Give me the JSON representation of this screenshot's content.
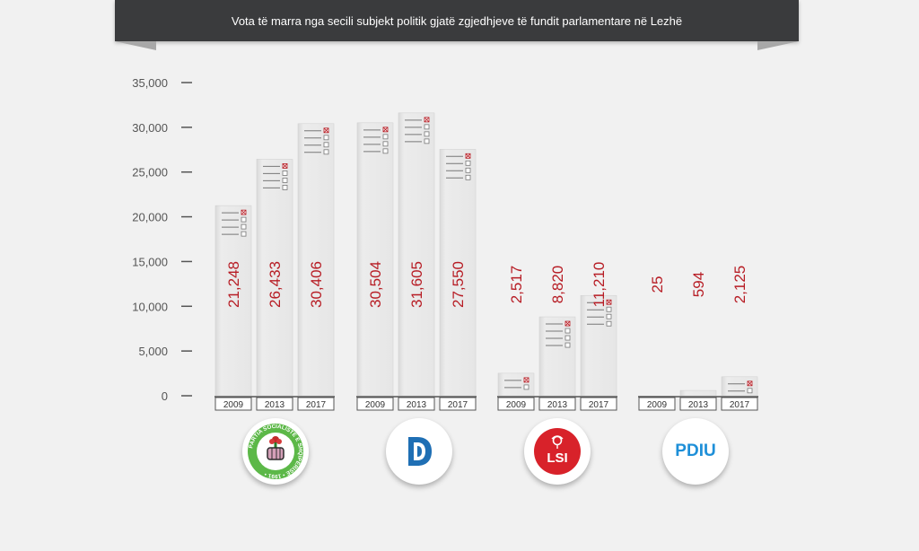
{
  "chart_data": {
    "type": "bar",
    "title": "Vota të marra nga secili subjekt politik gjatë zgjedhjeve të fundit parlamentare në Lezhë",
    "yticks": [
      "0",
      "5,000",
      "10,000",
      "15,000",
      "20,000",
      "25,000",
      "30,000",
      "35,000"
    ],
    "ylim": [
      0,
      35000
    ],
    "categories": [
      "2009",
      "2013",
      "2017"
    ],
    "series": [
      {
        "name": "PS",
        "values": [
          21248,
          26433,
          30406
        ],
        "labels": [
          "21,248",
          "26,433",
          "30,406"
        ]
      },
      {
        "name": "PD",
        "values": [
          30504,
          31605,
          27550
        ],
        "labels": [
          "30,504",
          "31,605",
          "27,550"
        ]
      },
      {
        "name": "LSI",
        "values": [
          2517,
          8820,
          11210
        ],
        "labels": [
          "2,517",
          "8,820",
          "11,210"
        ]
      },
      {
        "name": "PDIU",
        "values": [
          25,
          594,
          2125
        ],
        "labels": [
          "25",
          "594",
          "2,125"
        ]
      }
    ],
    "colors": {
      "value_label": "#b71c24",
      "bar": "#e6e6e6",
      "axis": "#555555"
    }
  },
  "logos": {
    "ps": {
      "text": "PARTIA SOCIALISTE E SHQIPËRISË • 1991 •",
      "ring_color": "#5cb848",
      "icon": "rose-fist-icon"
    },
    "pd": {
      "icon": "pd-logo-icon",
      "color": "#1f6fb4"
    },
    "lsi": {
      "text": "LSI",
      "icon": "rose-icon",
      "color": "#d8222a"
    },
    "pdiu": {
      "text": "PDIU",
      "color": "#1e8fd8"
    }
  }
}
